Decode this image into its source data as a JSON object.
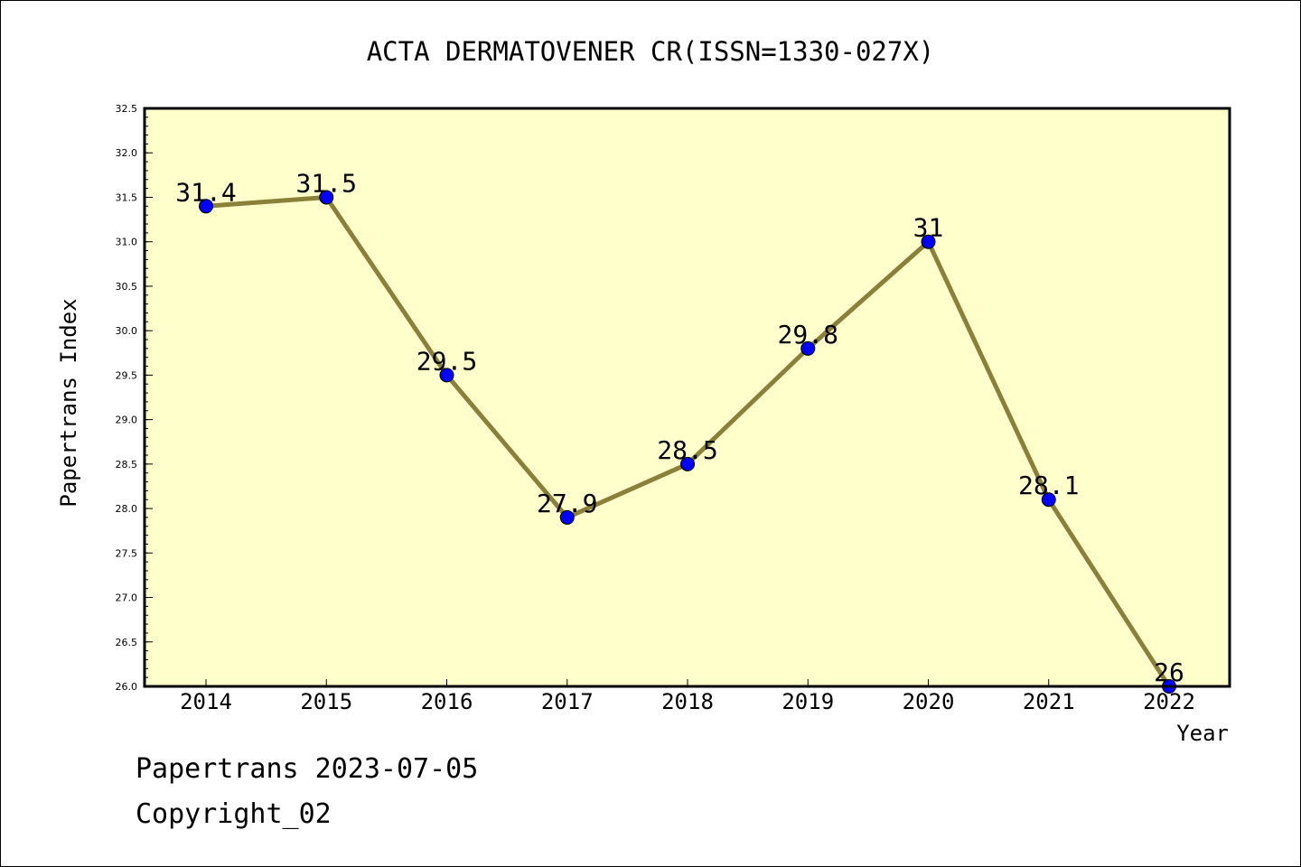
{
  "chart_data": {
    "type": "line",
    "title": "ACTA DERMATOVENER CR(ISSN=1330-027X)",
    "xlabel": "Year",
    "ylabel": "Papertrans Index",
    "categories": [
      "2014",
      "2015",
      "2016",
      "2017",
      "2018",
      "2019",
      "2020",
      "2021",
      "2022"
    ],
    "values": [
      31.4,
      31.5,
      29.5,
      27.9,
      28.5,
      29.8,
      31,
      28.1,
      26
    ],
    "data_labels": [
      "31.4",
      "31.5",
      "29.5",
      "27.9",
      "28.5",
      "29.8",
      "31",
      "28.1",
      "26"
    ],
    "ylim": [
      26.0,
      32.5
    ],
    "yticks": [
      "26.0",
      "26.5",
      "27.0",
      "27.5",
      "28.0",
      "28.5",
      "29.0",
      "29.5",
      "30.0",
      "30.5",
      "31.0",
      "31.5",
      "32.0",
      "32.5"
    ],
    "grid": false,
    "legend": "none",
    "colors": {
      "plot_background": "#ffffcc",
      "line": "#8b8039",
      "marker": "#0000ff"
    }
  },
  "footer": {
    "date_text": "Papertrans 2023-07-05",
    "copyright_text": "Copyright_02"
  }
}
